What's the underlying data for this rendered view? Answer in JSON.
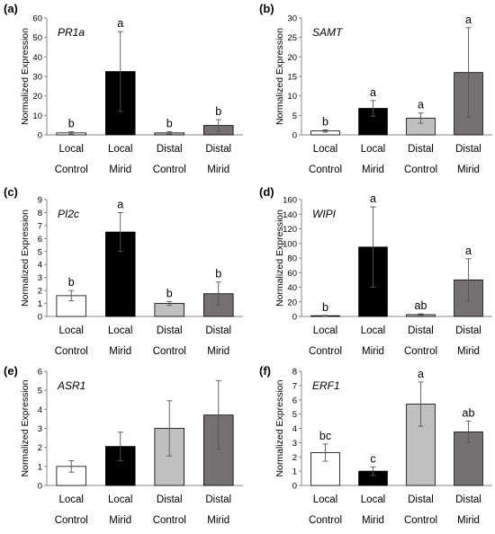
{
  "chart_data": [
    {
      "type": "bar",
      "panel_label": "(a)",
      "title": "PR1a",
      "ylabel": "Normalized Expression",
      "ylim": [
        0,
        60
      ],
      "yticks": [
        0,
        10,
        20,
        30,
        40,
        50,
        60
      ],
      "categories": [
        [
          "Local",
          "Control"
        ],
        [
          "Local",
          "Mirid"
        ],
        [
          "Distal",
          "Control"
        ],
        [
          "Distal",
          "Mirid"
        ]
      ],
      "values": [
        1.0,
        32.5,
        1.0,
        4.8
      ],
      "errors": [
        0.6,
        20.5,
        0.6,
        3.0
      ],
      "letters": [
        "b",
        "a",
        "b",
        "b"
      ],
      "colors": [
        "#ffffff",
        "#000000",
        "#c0c0c0",
        "#757171"
      ]
    },
    {
      "type": "bar",
      "panel_label": "(b)",
      "title": "SAMT",
      "ylabel": "Normalized Expression",
      "ylim": [
        0,
        30
      ],
      "yticks": [
        0,
        5,
        10,
        15,
        20,
        25,
        30
      ],
      "categories": [
        [
          "Local",
          "Control"
        ],
        [
          "Local",
          "Mirid"
        ],
        [
          "Distal",
          "Control"
        ],
        [
          "Distal",
          "Mirid"
        ]
      ],
      "values": [
        1.0,
        6.8,
        4.3,
        16.0
      ],
      "errors": [
        0.3,
        2.0,
        1.3,
        11.5
      ],
      "letters": [
        "b",
        "a",
        "a",
        "a"
      ],
      "colors": [
        "#ffffff",
        "#000000",
        "#c0c0c0",
        "#757171"
      ]
    },
    {
      "type": "bar",
      "panel_label": "(c)",
      "title": "PI2c",
      "ylabel": "Normalized Expression",
      "ylim": [
        0,
        9
      ],
      "yticks": [
        0,
        1,
        2,
        3,
        4,
        5,
        6,
        7,
        8,
        9
      ],
      "categories": [
        [
          "Local",
          "Control"
        ],
        [
          "Local",
          "Mirid"
        ],
        [
          "Distal",
          "Control"
        ],
        [
          "Distal",
          "Mirid"
        ]
      ],
      "values": [
        1.6,
        6.5,
        1.0,
        1.75
      ],
      "errors": [
        0.4,
        1.5,
        0.15,
        0.9
      ],
      "letters": [
        "b",
        "a",
        "b",
        "b"
      ],
      "colors": [
        "#ffffff",
        "#000000",
        "#c0c0c0",
        "#757171"
      ]
    },
    {
      "type": "bar",
      "panel_label": "(d)",
      "title": "WIPI",
      "ylabel": "Normalized Expression",
      "ylim": [
        0,
        160
      ],
      "yticks": [
        0,
        20,
        40,
        60,
        80,
        100,
        120,
        140,
        160
      ],
      "categories": [
        [
          "Local",
          "Control"
        ],
        [
          "Local",
          "Mirid"
        ],
        [
          "Distal",
          "Control"
        ],
        [
          "Distal",
          "Mirid"
        ]
      ],
      "values": [
        1.0,
        95.0,
        2.5,
        50.0
      ],
      "errors": [
        0.5,
        55.0,
        1.0,
        29.0
      ],
      "letters": [
        "b",
        "a",
        "ab",
        "a"
      ],
      "colors": [
        "#ffffff",
        "#000000",
        "#c0c0c0",
        "#757171"
      ]
    },
    {
      "type": "bar",
      "panel_label": "(e)",
      "title": "ASR1",
      "ylabel": "Normalized Expression",
      "ylim": [
        0,
        6
      ],
      "yticks": [
        0,
        1,
        2,
        3,
        4,
        5,
        6
      ],
      "categories": [
        [
          "Local",
          "Control"
        ],
        [
          "Local",
          "Mirid"
        ],
        [
          "Distal",
          "Control"
        ],
        [
          "Distal",
          "Mirid"
        ]
      ],
      "values": [
        1.0,
        2.05,
        3.0,
        3.7
      ],
      "errors": [
        0.3,
        0.75,
        1.45,
        1.8
      ],
      "letters": [
        "",
        "",
        "",
        ""
      ],
      "colors": [
        "#ffffff",
        "#000000",
        "#c0c0c0",
        "#757171"
      ]
    },
    {
      "type": "bar",
      "panel_label": "(f)",
      "title": "ERF1",
      "ylabel": "Normalized Expression",
      "ylim": [
        0,
        8
      ],
      "yticks": [
        0,
        1,
        2,
        3,
        4,
        5,
        6,
        7,
        8
      ],
      "categories": [
        [
          "Local",
          "Control"
        ],
        [
          "Local",
          "Mirid"
        ],
        [
          "Distal",
          "Control"
        ],
        [
          "Distal",
          "Mirid"
        ]
      ],
      "values": [
        2.3,
        1.0,
        5.7,
        3.75
      ],
      "errors": [
        0.6,
        0.3,
        1.55,
        0.75
      ],
      "letters": [
        "bc",
        "c",
        "a",
        "ab"
      ],
      "colors": [
        "#ffffff",
        "#000000",
        "#c0c0c0",
        "#757171"
      ]
    }
  ]
}
